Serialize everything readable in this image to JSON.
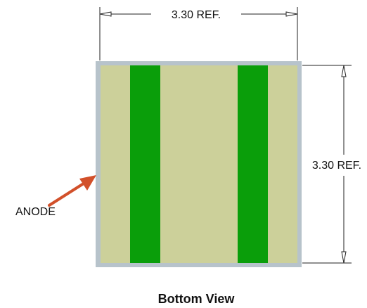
{
  "diagram": {
    "top_dimension_label": "3.30 REF.",
    "right_dimension_label": "3.30 REF.",
    "anode_label": "ANODE",
    "view_title": "Bottom View"
  },
  "colors": {
    "frame": "#b7c3cb",
    "pad_background": "#ccd09a",
    "stripe": "#0a9e0a",
    "arrow": "#d2502a",
    "dimension_line": "#222222"
  }
}
